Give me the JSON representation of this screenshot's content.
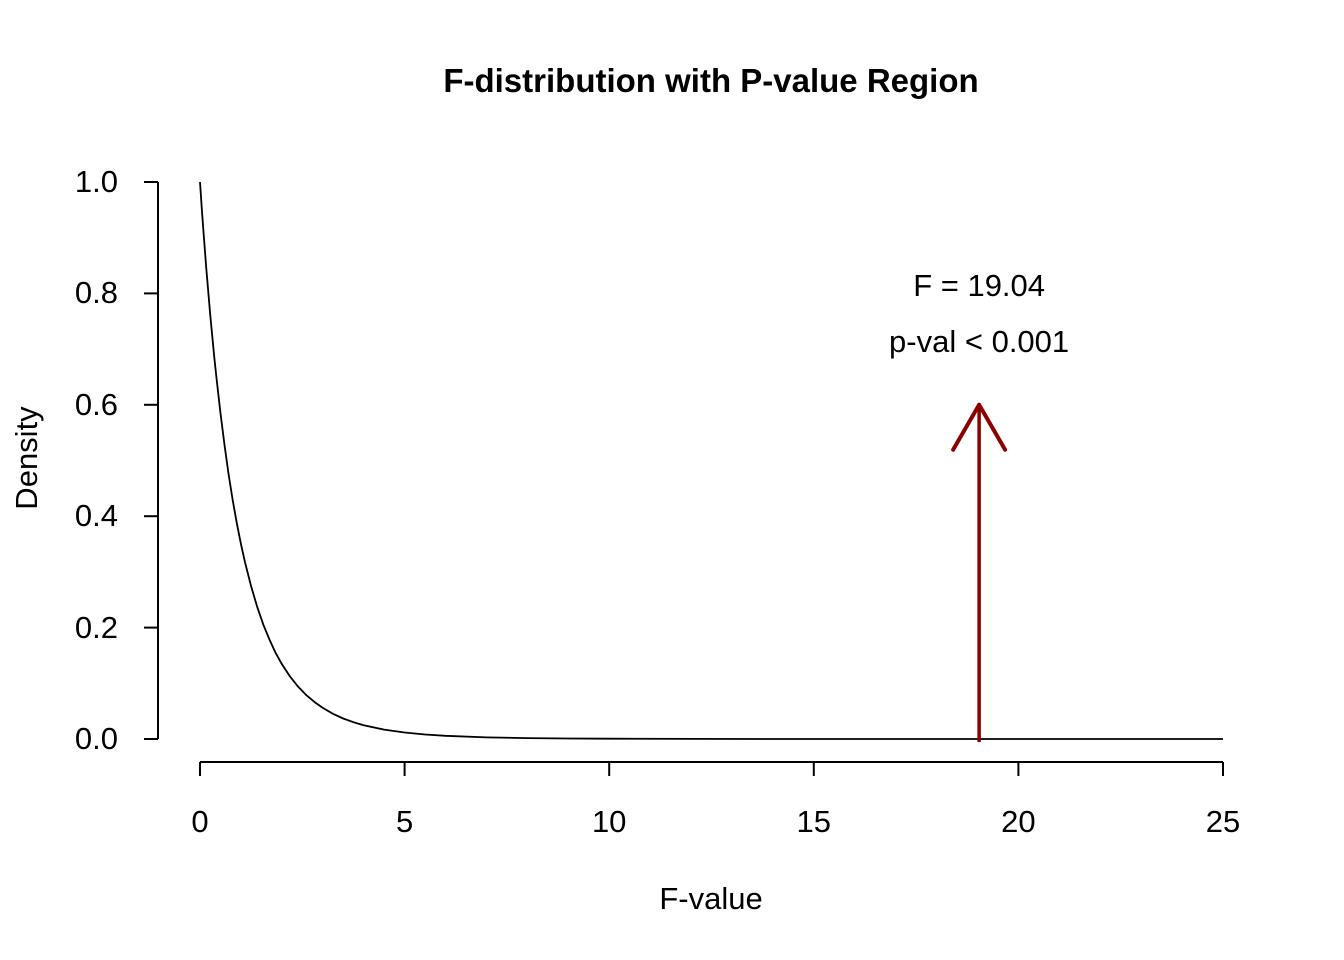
{
  "figure": {
    "background": "#ffffff",
    "text_color": "#000000"
  },
  "chart_data": {
    "type": "line",
    "title": "F-distribution with P-value Region",
    "xlabel": "F-value",
    "ylabel": "Density",
    "xlim": [
      0,
      25
    ],
    "ylim": [
      0.0,
      1.0
    ],
    "x_ticks": [
      "0",
      "5",
      "10",
      "15",
      "20",
      "25"
    ],
    "x_tick_values": [
      0,
      5,
      10,
      15,
      20,
      25
    ],
    "y_ticks": [
      "0.0",
      "0.2",
      "0.4",
      "0.6",
      "0.8",
      "1.0"
    ],
    "y_tick_values": [
      0,
      0.2,
      0.4,
      0.6,
      0.8,
      1.0
    ],
    "grid": false,
    "legend": false,
    "axis_color": "#000000",
    "curve": {
      "color": "#000000",
      "x": [
        0,
        0.05,
        0.1,
        0.15,
        0.2,
        0.25,
        0.3,
        0.35,
        0.4,
        0.5,
        0.6,
        0.7,
        0.8,
        0.9,
        1.0,
        1.1,
        1.25,
        1.4,
        1.55,
        1.7,
        1.85,
        2.0,
        2.2,
        2.4,
        2.6,
        2.8,
        3.0,
        3.25,
        3.5,
        3.75,
        4.0,
        4.5,
        5.0,
        5.5,
        6.0,
        7.0,
        8.0,
        9.0,
        10,
        12,
        14,
        16,
        18,
        20,
        22,
        25
      ],
      "y": [
        1.0,
        0.9466,
        0.8964,
        0.8489,
        0.8043,
        0.7621,
        0.7224,
        0.685,
        0.6496,
        0.5847,
        0.5268,
        0.4751,
        0.4289,
        0.3875,
        0.3505,
        0.3173,
        0.2737,
        0.2366,
        0.205,
        0.1779,
        0.1542,
        0.1346,
        0.1122,
        0.0938,
        0.0787,
        0.0662,
        0.0558,
        0.0452,
        0.0368,
        0.0301,
        0.0247,
        0.0168,
        0.0116,
        0.0081,
        0.0057,
        0.0029,
        0.0016,
        0.00086,
        0.00049,
        0.00017,
        7e-05,
        2.7e-05,
        1.2e-05,
        6e-06,
        3e-06,
        1e-06
      ]
    },
    "annotation": {
      "line1": "F = 19.04",
      "line2": "p-val < 0.001",
      "f_statistic": 19.04,
      "arrow": {
        "x": 19.04,
        "y_from": 0,
        "y_to": 0.6
      },
      "arrow_color": "#8B0000",
      "text_color": "#000000"
    }
  }
}
